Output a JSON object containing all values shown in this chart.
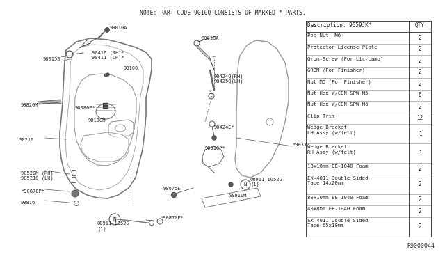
{
  "title_note": "NOTE: PART CODE 90100 CONSISTS OF MARKED * PARTS.",
  "diagram_number": "R9000044",
  "background_color": "#ffffff",
  "line_color": "#555555",
  "text_color": "#222222",
  "table": {
    "header": [
      "Description: 9059JK*",
      "QTY"
    ],
    "rows": [
      [
        "Pop Nut, M6",
        "2"
      ],
      [
        "Protector License Plate",
        "2"
      ],
      [
        "Grom-Screw (For Lic-Lamp)",
        "2"
      ],
      [
        "GROM (For Finisher)",
        "2"
      ],
      [
        "Nut M5 (For Finisher)",
        "2"
      ],
      [
        "Nut Hex W/CDN SPW M5",
        "6"
      ],
      [
        "Nut Hex W/CDN SPW M6",
        "2"
      ],
      [
        "Clip Trim",
        "12"
      ],
      [
        "Wedge Bracket\nLH Assy (w/felt)",
        "1"
      ],
      [
        "Wedge Bracket\nRH Assy (w/felt)",
        "1"
      ],
      [
        "18x18mm EE-1040 Foam",
        "2"
      ],
      [
        "EX-4011 Double Sided\nTape 14x20mm",
        "2"
      ],
      [
        "80x10mm EE-1040 Foam",
        "2"
      ],
      [
        "40x8mm EE-1040 Foam",
        "2"
      ],
      [
        "EX-4011 Double Sided\nTape 65x10mm",
        "2"
      ]
    ]
  }
}
